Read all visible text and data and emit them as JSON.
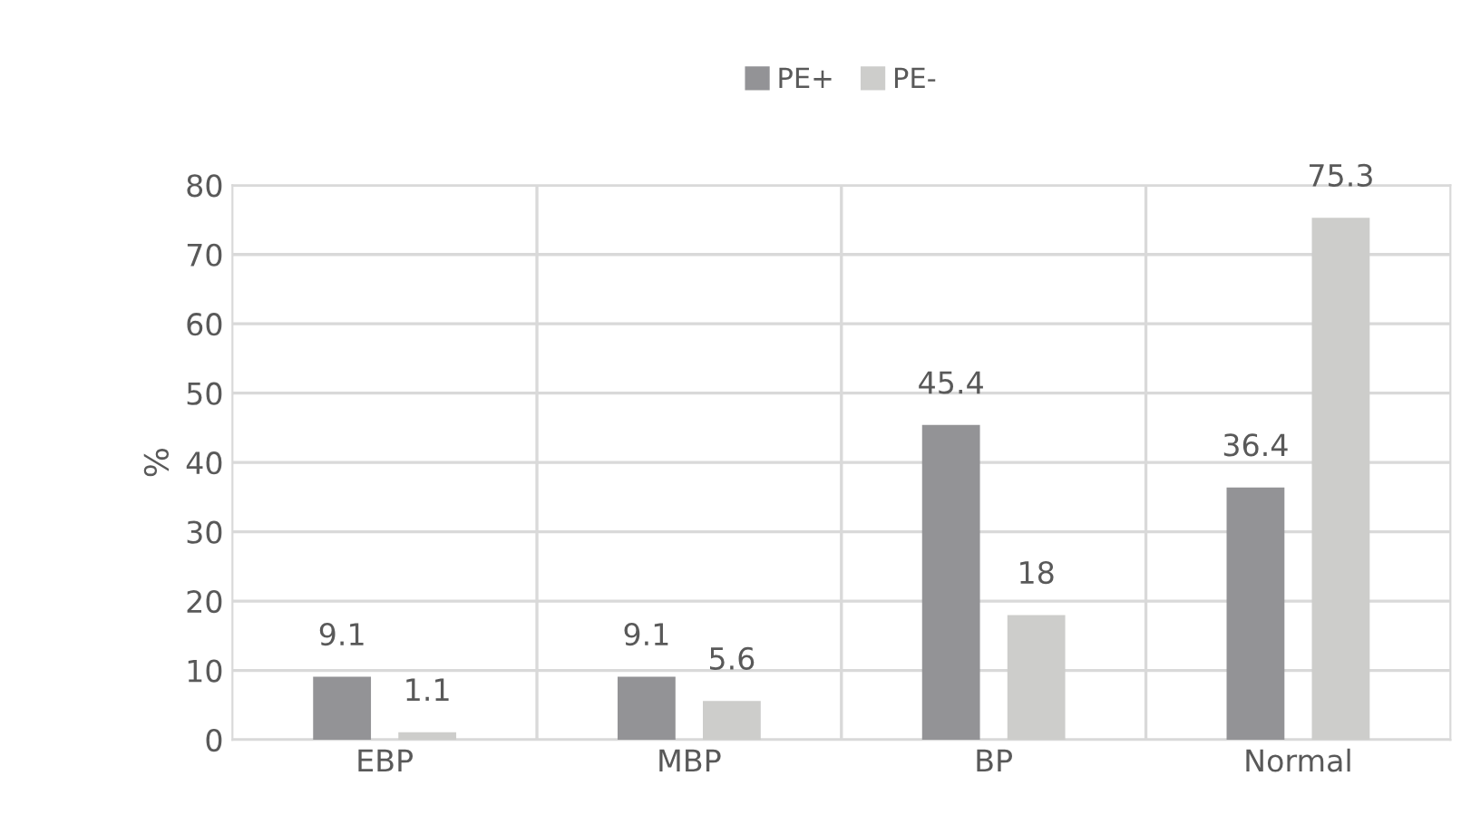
{
  "chart_data": {
    "type": "bar",
    "ylabel": "%",
    "categories": [
      "EBP",
      "MBP",
      "BP",
      "Normal"
    ],
    "series": [
      {
        "name": "PE+",
        "color": "#939396",
        "values": [
          9.1,
          9.1,
          45.4,
          36.4
        ]
      },
      {
        "name": "PE-",
        "color": "#cdcdcb",
        "values": [
          1.1,
          5.6,
          18,
          75.3
        ]
      }
    ],
    "ylim": [
      0,
      80
    ],
    "yticks": [
      0,
      10,
      20,
      30,
      40,
      50,
      60,
      70,
      80
    ],
    "grid": true,
    "legend": "top",
    "data_labels": true
  }
}
